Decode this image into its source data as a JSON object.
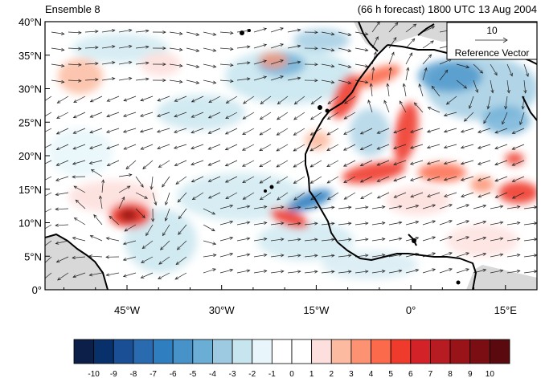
{
  "header": {
    "left_title": "Ensemble 8",
    "right_title": "(66 h forecast) 1800 UTC 13 Aug 2004"
  },
  "map": {
    "projection": "cylindrical-equidistant",
    "lon_range": [
      -58,
      20
    ],
    "lat_range": [
      0,
      40
    ],
    "lat_ticks": [
      {
        "value": 0,
        "label": "0°"
      },
      {
        "value": 5,
        "label": "5°N"
      },
      {
        "value": 10,
        "label": "10°N"
      },
      {
        "value": 15,
        "label": "15°N"
      },
      {
        "value": 20,
        "label": "20°N"
      },
      {
        "value": 25,
        "label": "25°N"
      },
      {
        "value": 30,
        "label": "30°N"
      },
      {
        "value": 35,
        "label": "35°N"
      },
      {
        "value": 40,
        "label": "40°N"
      }
    ],
    "lon_ticks": [
      {
        "value": -45,
        "label": "45°W"
      },
      {
        "value": -30,
        "label": "30°W"
      },
      {
        "value": -15,
        "label": "15°W"
      },
      {
        "value": 0,
        "label": "0°"
      },
      {
        "value": 15,
        "label": "15°E"
      }
    ],
    "reference_vector": {
      "magnitude": "10",
      "label": "Reference Vector"
    },
    "colorbar": {
      "labels": [
        "-10",
        "-9",
        "-8",
        "-7",
        "-6",
        "-5",
        "-4",
        "-3",
        "-2",
        "-1",
        "0",
        "1",
        "2",
        "3",
        "4",
        "5",
        "6",
        "7",
        "8",
        "9",
        "10"
      ],
      "colors": [
        "#0b1f48",
        "#08306b",
        "#1a4f96",
        "#2a6bb0",
        "#2f7ec0",
        "#4793c9",
        "#6aaed6",
        "#9ecae1",
        "#c6e5ee",
        "#e8f6fb",
        "#ffffff",
        "#ffffff",
        "#fde0dd",
        "#fcbba1",
        "#fc9272",
        "#fb6a4a",
        "#ef3b2c",
        "#d42328",
        "#b71c23",
        "#991419",
        "#7a0e13",
        "#5a0a0e"
      ]
    },
    "colors": {
      "land": "#d8d8d8",
      "coast": "#000000",
      "arrow": "#222222"
    }
  }
}
